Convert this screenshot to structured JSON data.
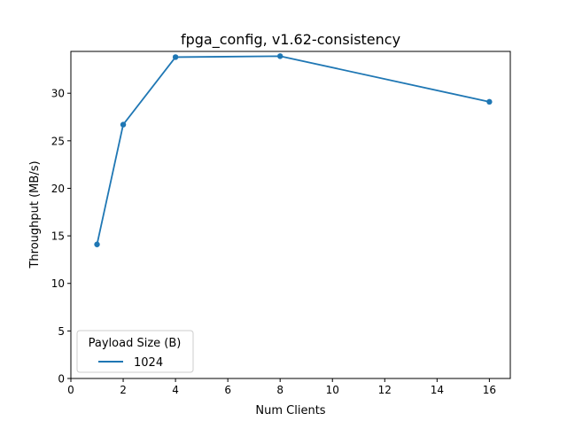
{
  "chart_data": {
    "type": "line",
    "title": "fpga_config, v1.62-consistency",
    "xlabel": "Num Clients",
    "ylabel": "Throughput (MB/s)",
    "xlim": [
      0,
      16.8
    ],
    "ylim": [
      0,
      34.4
    ],
    "xticks": [
      0,
      2,
      4,
      6,
      8,
      10,
      12,
      14,
      16
    ],
    "yticks": [
      0,
      5,
      10,
      15,
      20,
      25,
      30
    ],
    "grid": false,
    "legend": {
      "title": "Payload Size (B)",
      "placement": "lower-left"
    },
    "series": [
      {
        "name": "1024",
        "color": "#1f77b4",
        "marker": "circle",
        "x": [
          1,
          2,
          4,
          8,
          16
        ],
        "y": [
          14.1,
          26.7,
          33.8,
          33.9,
          29.1
        ]
      }
    ]
  }
}
